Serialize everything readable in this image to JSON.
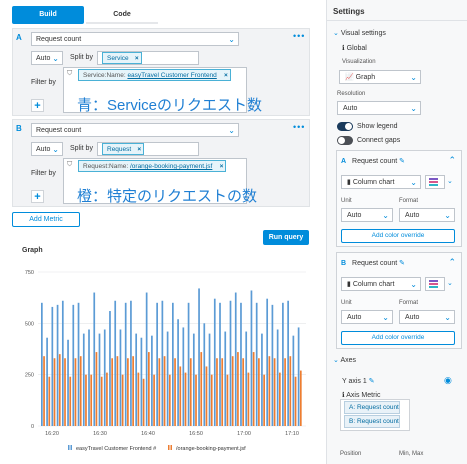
{
  "tabs": [
    {
      "label": "Build"
    },
    {
      "label": "Code"
    }
  ],
  "queries": [
    {
      "letter": "A",
      "metric": "Request count",
      "aggregation": "Auto",
      "split_by_label": "Split by",
      "split_by_chip": "Service",
      "filter_by_label": "Filter by",
      "filter_key": "Service:Name:",
      "filter_value": "easyTravel Customer Frontend",
      "annotation": "青：Serviceのリクエスト数"
    },
    {
      "letter": "B",
      "metric": "Request count",
      "aggregation": "Auto",
      "split_by_label": "Split by",
      "split_by_chip": "Request",
      "filter_by_label": "Filter by",
      "filter_key": "Request:Name:",
      "filter_value": "/orange-booking-payment.jsf",
      "annotation": "橙：特定のリクエストの数"
    }
  ],
  "add_metric_label": "Add Metric",
  "run_query_label": "Run query",
  "graph_title": "Graph",
  "chart_data": {
    "type": "bar",
    "y_ticks": [
      "750",
      "500",
      "250",
      "0"
    ],
    "ylim": [
      0,
      750
    ],
    "x_ticks": [
      "16:20",
      "16:30",
      "16:40",
      "16:50",
      "17:00",
      "17:10"
    ],
    "series": [
      {
        "name": "easyTravel Customer Frontend",
        "color": "#5b9bd5",
        "values": [
          600,
          430,
          580,
          590,
          610,
          420,
          590,
          600,
          450,
          470,
          650,
          450,
          470,
          560,
          610,
          470,
          600,
          610,
          450,
          430,
          650,
          440,
          600,
          610,
          460,
          600,
          520,
          480,
          600,
          450,
          670,
          500,
          450,
          620,
          600,
          460,
          610,
          650,
          600,
          460,
          660,
          600,
          450,
          620,
          590,
          470,
          600,
          610,
          440,
          480
        ]
      },
      {
        "name": "/orange-booking-payment.jsf",
        "color": "#ed7d31",
        "values": [
          340,
          240,
          330,
          350,
          330,
          240,
          330,
          340,
          250,
          250,
          360,
          240,
          260,
          330,
          340,
          250,
          330,
          340,
          260,
          230,
          360,
          250,
          330,
          340,
          250,
          330,
          290,
          260,
          330,
          250,
          360,
          290,
          250,
          330,
          330,
          250,
          340,
          360,
          330,
          260,
          360,
          330,
          250,
          340,
          330,
          260,
          330,
          340,
          240,
          270
        ]
      }
    ],
    "legend": [
      "easyTravel Customer Frontend",
      "/orange-booking-payment.jsf"
    ],
    "legend_suffix": "#"
  },
  "settings": {
    "title": "Settings",
    "visual_settings": "Visual settings",
    "global": "Global",
    "visualization_label": "Visualization",
    "visualization_value": "Graph",
    "resolution_label": "Resolution",
    "resolution_value": "Auto",
    "show_legend": "Show legend",
    "connect_gaps": "Connect gaps",
    "query_a": {
      "title": "Request count",
      "chart": "Column chart",
      "unit_label": "Unit",
      "unit_value": "Auto",
      "format_label": "Format",
      "format_value": "Auto",
      "color_btn": "Add color override"
    },
    "query_b": {
      "title": "Request count",
      "chart": "Column chart",
      "unit_label": "Unit",
      "unit_value": "Auto",
      "format_label": "Format",
      "format_value": "Auto",
      "color_btn": "Add color override"
    },
    "axes": "Axes",
    "y_axis": "Y axis 1",
    "axis_metric": "Axis Metric",
    "axis_metrics": [
      "A: Request count",
      "B: Request count"
    ],
    "position_label": "Position",
    "minmax_label": "Min, Max"
  }
}
